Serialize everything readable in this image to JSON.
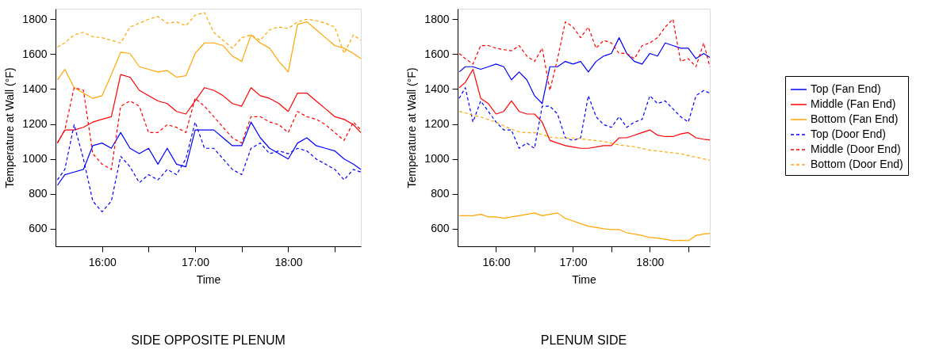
{
  "chart_data": [
    {
      "type": "line",
      "title": "SIDE OPPOSITE PLENUM",
      "xlabel": "Time",
      "ylabel": "Temperature at Wall (°F)",
      "x": [
        15.52,
        15.6,
        15.7,
        15.8,
        15.9,
        16.0,
        16.1,
        16.2,
        16.3,
        16.4,
        16.5,
        16.6,
        16.7,
        16.8,
        16.9,
        17.0,
        17.1,
        17.2,
        17.3,
        17.4,
        17.5,
        17.6,
        17.7,
        17.8,
        17.9,
        18.0,
        18.1,
        18.2,
        18.3,
        18.4,
        18.5,
        18.6,
        18.7,
        18.78
      ],
      "xlim": [
        15.5,
        18.78
      ],
      "xticks": [
        {
          "value": 16,
          "label": "16:00"
        },
        {
          "value": 16.5,
          "label": null
        },
        {
          "value": 17,
          "label": "17:00"
        },
        {
          "value": 17.5,
          "label": null
        },
        {
          "value": 18,
          "label": "18:00"
        },
        {
          "value": 18.5,
          "label": null
        }
      ],
      "ylim": [
        500,
        1860
      ],
      "yticks": [
        600,
        800,
        1000,
        1200,
        1400,
        1600,
        1800
      ],
      "grid": false,
      "legend": "right",
      "marker": "none",
      "series": [
        {
          "name": "Top (Fan End)",
          "color": "#0000ff",
          "line_style": "solid",
          "values": [
            849,
            910,
            925,
            940,
            1076,
            1091,
            1061,
            1151,
            1061,
            1030,
            1061,
            970,
            1061,
            970,
            955,
            1166,
            1166,
            1166,
            1121,
            1076,
            1076,
            1211,
            1121,
            1061,
            1030,
            1000,
            1091,
            1121,
            1076,
            1061,
            1046,
            1000,
            970,
            940
          ]
        },
        {
          "name": "Middle (Fan End)",
          "color": "#ff0000",
          "line_style": "solid",
          "values": [
            1091,
            1166,
            1166,
            1181,
            1211,
            1227,
            1242,
            1483,
            1468,
            1393,
            1362,
            1332,
            1317,
            1272,
            1257,
            1332,
            1408,
            1393,
            1362,
            1317,
            1302,
            1408,
            1362,
            1347,
            1317,
            1272,
            1377,
            1377,
            1332,
            1287,
            1242,
            1227,
            1196,
            1151
          ]
        },
        {
          "name": "Bottom (Fan End)",
          "color": "#ffa500",
          "line_style": "solid",
          "values": [
            1453,
            1513,
            1408,
            1377,
            1347,
            1362,
            1483,
            1611,
            1604,
            1528,
            1513,
            1498,
            1506,
            1468,
            1476,
            1604,
            1664,
            1664,
            1649,
            1589,
            1558,
            1710,
            1664,
            1634,
            1558,
            1498,
            1770,
            1785,
            1740,
            1694,
            1649,
            1634,
            1604,
            1574
          ]
        },
        {
          "name": "Top (Door End)",
          "color": "#0000ff",
          "line_style": "dashed",
          "values": [
            880,
            940,
            1196,
            1000,
            759,
            698,
            759,
            1015,
            955,
            864,
            910,
            880,
            940,
            910,
            1000,
            1211,
            1061,
            1061,
            1000,
            940,
            910,
            1061,
            1091,
            1030,
            1046,
            1030,
            1061,
            1046,
            1000,
            970,
            940,
            880,
            940,
            925
          ]
        },
        {
          "name": "Middle (Door End)",
          "color": "#ff0000",
          "line_style": "dashed",
          "values": [
            1091,
            1166,
            1408,
            1393,
            1030,
            970,
            940,
            1302,
            1332,
            1302,
            1151,
            1151,
            1196,
            1181,
            1151,
            1347,
            1302,
            1242,
            1181,
            1121,
            1091,
            1242,
            1242,
            1211,
            1196,
            1151,
            1272,
            1242,
            1227,
            1196,
            1151,
            1106,
            1211,
            1166
          ]
        },
        {
          "name": "Bottom (Door End)",
          "color": "#ffa500",
          "line_style": "dashed",
          "values": [
            1640,
            1664,
            1710,
            1725,
            1700,
            1694,
            1679,
            1664,
            1755,
            1777,
            1800,
            1815,
            1777,
            1785,
            1762,
            1823,
            1838,
            1725,
            1679,
            1634,
            1694,
            1710,
            1679,
            1740,
            1755,
            1747,
            1785,
            1800,
            1792,
            1777,
            1755,
            1604,
            1710,
            1679
          ]
        }
      ]
    },
    {
      "type": "line",
      "title": "PLENUM SIDE",
      "xlabel": "Time",
      "ylabel": "Temperature at Wall (°F)",
      "x": [
        15.52,
        15.6,
        15.7,
        15.8,
        15.9,
        16.0,
        16.1,
        16.2,
        16.3,
        16.4,
        16.5,
        16.6,
        16.7,
        16.8,
        16.9,
        17.0,
        17.1,
        17.2,
        17.3,
        17.4,
        17.5,
        17.6,
        17.7,
        17.8,
        17.9,
        18.0,
        18.1,
        18.2,
        18.3,
        18.4,
        18.5,
        18.6,
        18.7,
        18.78
      ],
      "xlim": [
        15.5,
        18.78
      ],
      "xticks": [
        {
          "value": 16,
          "label": "16:00"
        },
        {
          "value": 16.5,
          "label": null
        },
        {
          "value": 17,
          "label": "17:00"
        },
        {
          "value": 17.5,
          "label": null
        },
        {
          "value": 18,
          "label": "18:00"
        },
        {
          "value": 18.5,
          "label": null
        }
      ],
      "ylim": [
        500,
        1860
      ],
      "yticks": [
        600,
        800,
        1000,
        1200,
        1400,
        1600,
        1800
      ],
      "grid": false,
      "legend": "right",
      "marker": "none",
      "series": [
        {
          "name": "Top (Fan End)",
          "color": "#0000ff",
          "line_style": "solid",
          "values": [
            1498,
            1528,
            1528,
            1513,
            1528,
            1543,
            1528,
            1453,
            1498,
            1453,
            1362,
            1317,
            1528,
            1528,
            1558,
            1543,
            1558,
            1498,
            1558,
            1589,
            1604,
            1694,
            1604,
            1558,
            1543,
            1604,
            1589,
            1664,
            1649,
            1634,
            1634,
            1574,
            1604,
            1581
          ]
        },
        {
          "name": "Middle (Fan End)",
          "color": "#ff0000",
          "line_style": "solid",
          "values": [
            1408,
            1438,
            1513,
            1347,
            1317,
            1257,
            1272,
            1332,
            1272,
            1257,
            1257,
            1211,
            1106,
            1091,
            1076,
            1068,
            1061,
            1061,
            1068,
            1076,
            1076,
            1121,
            1121,
            1136,
            1151,
            1166,
            1136,
            1128,
            1128,
            1143,
            1151,
            1121,
            1113,
            1109
          ]
        },
        {
          "name": "Bottom (Fan End)",
          "color": "#ffa500",
          "line_style": "solid",
          "values": [
            675,
            675,
            675,
            683,
            668,
            668,
            660,
            668,
            675,
            683,
            691,
            675,
            683,
            691,
            660,
            645,
            630,
            615,
            608,
            600,
            596,
            596,
            577,
            570,
            562,
            550,
            547,
            540,
            532,
            535,
            532,
            562,
            570,
            574
          ]
        },
        {
          "name": "Top (Door End)",
          "color": "#0000ff",
          "line_style": "dashed",
          "values": [
            1347,
            1408,
            1211,
            1332,
            1272,
            1211,
            1166,
            1166,
            1061,
            1091,
            1061,
            1302,
            1302,
            1257,
            1121,
            1106,
            1121,
            1362,
            1242,
            1196,
            1181,
            1242,
            1181,
            1211,
            1227,
            1362,
            1317,
            1332,
            1287,
            1242,
            1211,
            1362,
            1392,
            1377
          ]
        },
        {
          "name": "Middle (Door End)",
          "color": "#ff0000",
          "line_style": "dashed",
          "values": [
            1604,
            1574,
            1543,
            1649,
            1649,
            1634,
            1626,
            1619,
            1649,
            1589,
            1558,
            1634,
            1392,
            1574,
            1785,
            1755,
            1694,
            1755,
            1634,
            1679,
            1664,
            1604,
            1604,
            1574,
            1649,
            1664,
            1694,
            1755,
            1800,
            1558,
            1574,
            1528,
            1664,
            1528
          ]
        },
        {
          "name": "Bottom (Door End)",
          "color": "#ffa500",
          "line_style": "dashed",
          "values": [
            1272,
            1264,
            1250,
            1240,
            1225,
            1210,
            1190,
            1170,
            1155,
            1150,
            1150,
            1140,
            1125,
            1120,
            1120,
            1120,
            1115,
            1110,
            1105,
            1100,
            1090,
            1080,
            1075,
            1070,
            1060,
            1050,
            1045,
            1040,
            1035,
            1030,
            1020,
            1010,
            1000,
            993
          ]
        }
      ]
    }
  ]
}
